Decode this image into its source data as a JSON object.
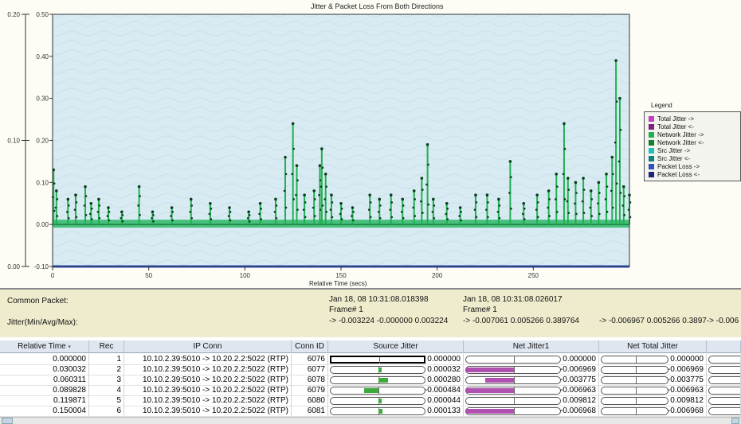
{
  "chart_data": {
    "type": "line",
    "title": "Jitter & Packet Loss From Both Directions",
    "xlabel": "Relative Time (secs)",
    "ylabel": "",
    "xlim": [
      0,
      300
    ],
    "ylim": [
      -0.1,
      0.5
    ],
    "x_ticks": [
      "0",
      "50",
      "100",
      "150",
      "200",
      "250"
    ],
    "x_tick_values": [
      0,
      50,
      100,
      150,
      200,
      250
    ],
    "y_ticks": [
      "-0.10",
      "0.00",
      "0.10",
      "0.20",
      "0.30",
      "0.40",
      "0.50"
    ],
    "y_tick_values": [
      -0.1,
      0.0,
      0.1,
      0.2,
      0.3,
      0.4,
      0.5
    ],
    "secondary_axis_ticks": [
      "0.20",
      "0.10",
      "0.00"
    ],
    "secondary_axis_tick_values": [
      0.2,
      0.1,
      0.0
    ],
    "grid": false,
    "legend_position": "right",
    "legend_title": "Legend",
    "series": [
      {
        "name": "Total Jitter ->",
        "color": "#c040c0"
      },
      {
        "name": "Total Jitter <-",
        "color": "#802080"
      },
      {
        "name": "Network Jitter ->",
        "color": "#20b050"
      },
      {
        "name": "Network Jitter <-",
        "color": "#108030"
      },
      {
        "name": "Src Jitter ->",
        "color": "#20c0c0"
      },
      {
        "name": "Src Jitter <-",
        "color": "#108080"
      },
      {
        "name": "Packet Loss ->",
        "color": "#3050c0"
      },
      {
        "name": "Packet Loss <-",
        "color": "#202080"
      }
    ],
    "jitter_peaks": [
      [
        0.5,
        0.13
      ],
      [
        2,
        0.08
      ],
      [
        8,
        0.06
      ],
      [
        12,
        0.07
      ],
      [
        17,
        0.09
      ],
      [
        20,
        0.05
      ],
      [
        24,
        0.06
      ],
      [
        29,
        0.04
      ],
      [
        36,
        0.03
      ],
      [
        45,
        0.09
      ],
      [
        52,
        0.03
      ],
      [
        62,
        0.04
      ],
      [
        72,
        0.06
      ],
      [
        82,
        0.05
      ],
      [
        92,
        0.04
      ],
      [
        102,
        0.03
      ],
      [
        108,
        0.05
      ],
      [
        116,
        0.06
      ],
      [
        121,
        0.16
      ],
      [
        125,
        0.24
      ],
      [
        127,
        0.14
      ],
      [
        131,
        0.07
      ],
      [
        136,
        0.08
      ],
      [
        139,
        0.14
      ],
      [
        140,
        0.18
      ],
      [
        142,
        0.12
      ],
      [
        145,
        0.07
      ],
      [
        150,
        0.05
      ],
      [
        156,
        0.04
      ],
      [
        165,
        0.07
      ],
      [
        170,
        0.06
      ],
      [
        176,
        0.07
      ],
      [
        182,
        0.06
      ],
      [
        188,
        0.08
      ],
      [
        192,
        0.11
      ],
      [
        195,
        0.19
      ],
      [
        198,
        0.06
      ],
      [
        205,
        0.05
      ],
      [
        212,
        0.04
      ],
      [
        220,
        0.07
      ],
      [
        226,
        0.07
      ],
      [
        232,
        0.06
      ],
      [
        238,
        0.15
      ],
      [
        245,
        0.05
      ],
      [
        252,
        0.07
      ],
      [
        258,
        0.08
      ],
      [
        262,
        0.12
      ],
      [
        266,
        0.24
      ],
      [
        268,
        0.11
      ],
      [
        272,
        0.1
      ],
      [
        276,
        0.11
      ],
      [
        280,
        0.08
      ],
      [
        284,
        0.1
      ],
      [
        288,
        0.12
      ],
      [
        291,
        0.16
      ],
      [
        293,
        0.39
      ],
      [
        295,
        0.3
      ],
      [
        297,
        0.09
      ],
      [
        300,
        0.07
      ]
    ],
    "packet_loss_level": -0.1
  },
  "info": {
    "common_packet_label": "Common Packet:",
    "jitter_label": "Jitter(Min/Avg/Max):",
    "col1_time": "Jan 18, 08 10:31:08.018398",
    "col1_frame": "Frame# 1",
    "col1_jitter": "-> -0.003224 -0.000000 0.003224",
    "col2_time": "Jan 18, 08 10:31:08.026017",
    "col2_frame": "Frame# 1",
    "col2_jitter": "-> -0.007061 0.005266 0.389764",
    "col3_jitter": "-> -0.006967 0.005266 0.3897-> -0.006"
  },
  "table": {
    "headers": [
      "Relative Time",
      "Rec",
      "IP Conn",
      "Conn ID",
      "Source Jitter",
      "Net Jitter1",
      "Net Total Jitter"
    ],
    "sort_indicator": "▾",
    "rows": [
      {
        "time": "0.000000",
        "rec": "1",
        "conn": "10.10.2.39:5010 -> 10.20.2.2:5022 (RTP)",
        "id": "6076",
        "src": "0.000000",
        "net": "0.000000",
        "tot": "0.000000",
        "src_frac": 0,
        "net_frac": 0,
        "selected": true
      },
      {
        "time": "0.030032",
        "rec": "2",
        "conn": "10.10.2.39:5010 -> 10.20.2.2:5022 (RTP)",
        "id": "6077",
        "src": "0.000032",
        "net": "-0.006969",
        "tot": "-0.006969",
        "src_frac": 0.02,
        "net_frac": -0.5,
        "selected": false
      },
      {
        "time": "0.060311",
        "rec": "3",
        "conn": "10.10.2.39:5010 -> 10.20.2.2:5022 (RTP)",
        "id": "6078",
        "src": "0.000280",
        "net": "-0.003775",
        "tot": "-0.003775",
        "src_frac": 0.1,
        "net_frac": -0.3,
        "selected": false
      },
      {
        "time": "0.089828",
        "rec": "4",
        "conn": "10.10.2.39:5010 -> 10.20.2.2:5022 (RTP)",
        "id": "6079",
        "src": "-0.000484",
        "net": "-0.006963",
        "tot": "-0.006963",
        "src_frac": -0.15,
        "net_frac": -0.5,
        "selected": false
      },
      {
        "time": "0.119871",
        "rec": "5",
        "conn": "10.10.2.39:5010 -> 10.20.2.2:5022 (RTP)",
        "id": "6080",
        "src": "0.000044",
        "net": "0.009812",
        "tot": "0.009812",
        "src_frac": 0.02,
        "net_frac": 0,
        "selected": false
      },
      {
        "time": "0.150004",
        "rec": "6",
        "conn": "10.10.2.39:5010 -> 10.20.2.2:5022 (RTP)",
        "id": "6081",
        "src": "0.000133",
        "net": "-0.006968",
        "tot": "-0.006968",
        "src_frac": 0.04,
        "net_frac": -0.5,
        "selected": false
      }
    ]
  },
  "scrollbar": {
    "left_arrow": "‹",
    "right_arrow": "›"
  }
}
